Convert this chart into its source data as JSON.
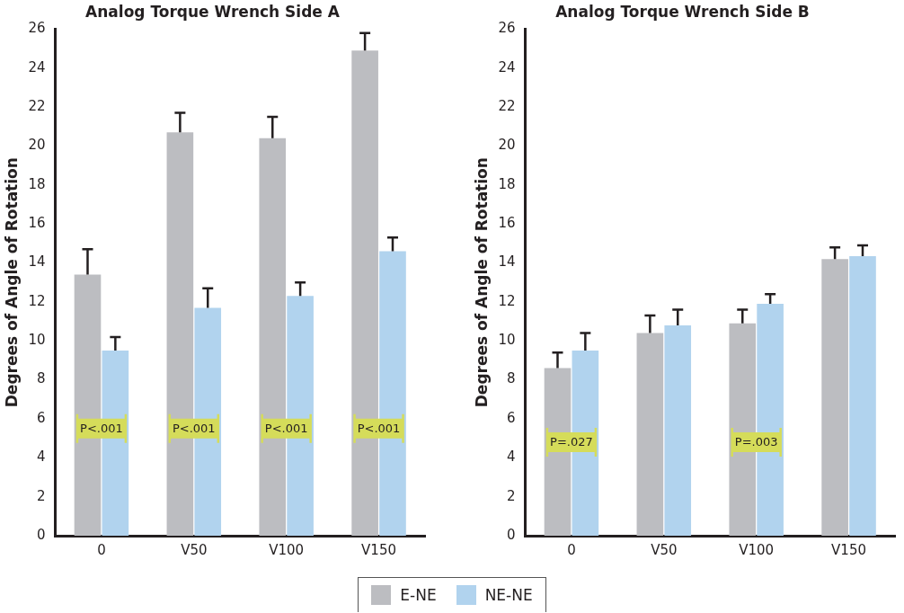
{
  "chart_data": [
    {
      "type": "bar",
      "title": "Analog Torque Wrench Side A",
      "ylabel": "Degrees of Angle of Rotation",
      "categories": [
        "0",
        "V50",
        "V100",
        "V150"
      ],
      "ylim": [
        0,
        26
      ],
      "yticks": [
        0,
        2,
        4,
        6,
        8,
        10,
        12,
        14,
        16,
        18,
        20,
        22,
        24,
        26
      ],
      "grid": false,
      "legend": "bottom",
      "series": [
        {
          "name": "E-NE",
          "color": "#bcbdc1",
          "values": [
            13.4,
            20.7,
            20.4,
            24.9
          ],
          "errors": [
            [
              13.4,
              14.7
            ],
            [
              20.7,
              21.7
            ],
            [
              20.4,
              21.5
            ],
            [
              24.9,
              25.8
            ]
          ]
        },
        {
          "name": "NE-NE",
          "color": "#b1d3ee",
          "values": [
            9.5,
            11.7,
            12.3,
            14.6
          ],
          "errors": [
            [
              9.5,
              10.2
            ],
            [
              11.7,
              12.7
            ],
            [
              12.3,
              13.0
            ],
            [
              14.6,
              15.3
            ]
          ]
        }
      ],
      "annotations": [
        {
          "text": "P<.001",
          "x": "0",
          "y": 5.5
        },
        {
          "text": "P<.001",
          "x": "V50",
          "y": 5.5
        },
        {
          "text": "P<.001",
          "x": "V100",
          "y": 5.5
        },
        {
          "text": "P<.001",
          "x": "V150",
          "y": 5.5
        }
      ]
    },
    {
      "type": "bar",
      "title": "Analog Torque Wrench Side B",
      "ylabel": "Degrees of Angle of Rotation",
      "categories": [
        "0",
        "V50",
        "V100",
        "V150"
      ],
      "ylim": [
        0,
        26
      ],
      "yticks": [
        0,
        2,
        4,
        6,
        8,
        10,
        12,
        14,
        16,
        18,
        20,
        22,
        24,
        26
      ],
      "grid": false,
      "series": [
        {
          "color": "#bcbdc1",
          "values": [
            8.6,
            10.4,
            10.9,
            14.2
          ],
          "errors": [
            [
              8.6,
              9.4
            ],
            [
              10.4,
              11.3
            ],
            [
              10.9,
              11.6
            ],
            [
              14.2,
              14.8
            ]
          ]
        },
        {
          "color": "#b1d3ee",
          "values": [
            9.5,
            10.8,
            11.9,
            14.35
          ],
          "errors": [
            [
              9.5,
              10.4
            ],
            [
              10.8,
              11.6
            ],
            [
              11.9,
              12.4
            ],
            [
              14.35,
              14.9
            ]
          ]
        }
      ],
      "annotations": [
        {
          "text": "P=.027",
          "x": "0",
          "y": 4.8
        },
        {
          "text": "P=.003",
          "x": "V100",
          "y": 4.8
        }
      ]
    }
  ]
}
